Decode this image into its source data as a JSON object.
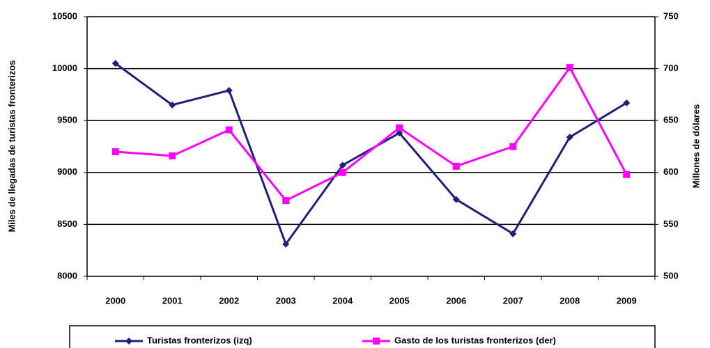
{
  "chart_data": {
    "type": "line",
    "y_label": "Miles de llegadas de turistas fronterizos",
    "y2_label": "Millones de dólares",
    "categories": [
      "2000",
      "2001",
      "2002",
      "2003",
      "2004",
      "2005",
      "2006",
      "2007",
      "2008",
      "2009"
    ],
    "series": [
      {
        "name": "Turistas fronterizos (izq)",
        "color": "#1f1f7a",
        "marker": "diamond",
        "values": [
          10050,
          9650,
          9790,
          8310,
          9070,
          9380,
          8740,
          8410,
          9340,
          9670
        ]
      },
      {
        "name": "Gasto de los turistas fronterizos (der)",
        "color": "#ff00ff",
        "marker": "square",
        "axis": "y2",
        "values": [
          620,
          616,
          641,
          573,
          600,
          643,
          606,
          625,
          701,
          598
        ]
      }
    ],
    "ylim": [
      8000,
      10500
    ],
    "yticks": [
      8000,
      8500,
      9000,
      9500,
      10000,
      10500
    ],
    "y2lim": [
      500,
      750
    ],
    "y2ticks": [
      500,
      550,
      600,
      650,
      700,
      750
    ],
    "grid": true,
    "legend": "bottom"
  }
}
